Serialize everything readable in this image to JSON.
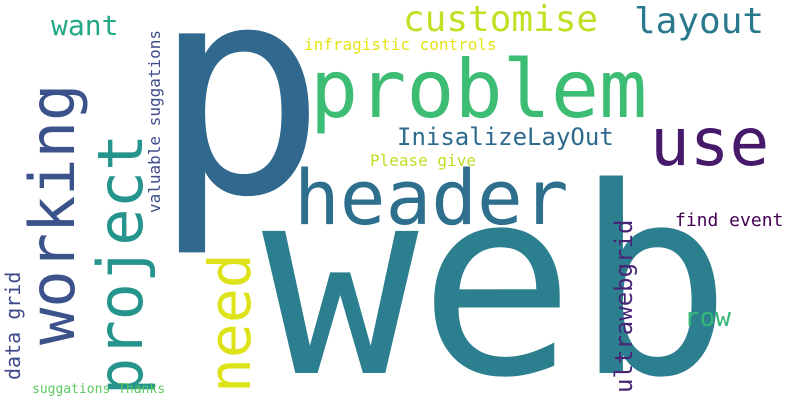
{
  "words": [
    {
      "key": "p",
      "text": "p",
      "color": "#31688e"
    },
    {
      "key": "web",
      "text": "web",
      "color": "#2c7f8e"
    },
    {
      "key": "problem",
      "text": "problem",
      "color": "#3dbc74"
    },
    {
      "key": "header",
      "text": "header",
      "color": "#2e6f8e"
    },
    {
      "key": "use",
      "text": "use",
      "color": "#46196b"
    },
    {
      "key": "working",
      "text": "working",
      "color": "#3b528b"
    },
    {
      "key": "project",
      "text": "project",
      "color": "#25948c"
    },
    {
      "key": "need",
      "text": "need",
      "color": "#dde318"
    },
    {
      "key": "customise",
      "text": "customise",
      "color": "#c2df23"
    },
    {
      "key": "layout",
      "text": "layout",
      "color": "#2a788e"
    },
    {
      "key": "want",
      "text": "want",
      "color": "#22a884"
    },
    {
      "key": "initialize_layout",
      "text": "InisalizeLayOut",
      "color": "#2e6a8e"
    },
    {
      "key": "row",
      "text": "row",
      "color": "#35b779"
    },
    {
      "key": "ultrawebgrid",
      "text": "ultrawebgrid",
      "color": "#482576"
    },
    {
      "key": "data_grid",
      "text": "data grid",
      "color": "#3e4a89"
    },
    {
      "key": "find_event",
      "text": "find event",
      "color": "#440154"
    },
    {
      "key": "infragistic_controls",
      "text": "infragistic controls",
      "color": "#e5e419"
    },
    {
      "key": "valuable_suggations",
      "text": "valuable suggations",
      "color": "#3e4c8a"
    },
    {
      "key": "please_give",
      "text": "Please give",
      "color": "#c0df25"
    },
    {
      "key": "suggations_thanks",
      "text": "suggations Thanks",
      "color": "#5ec962"
    }
  ]
}
